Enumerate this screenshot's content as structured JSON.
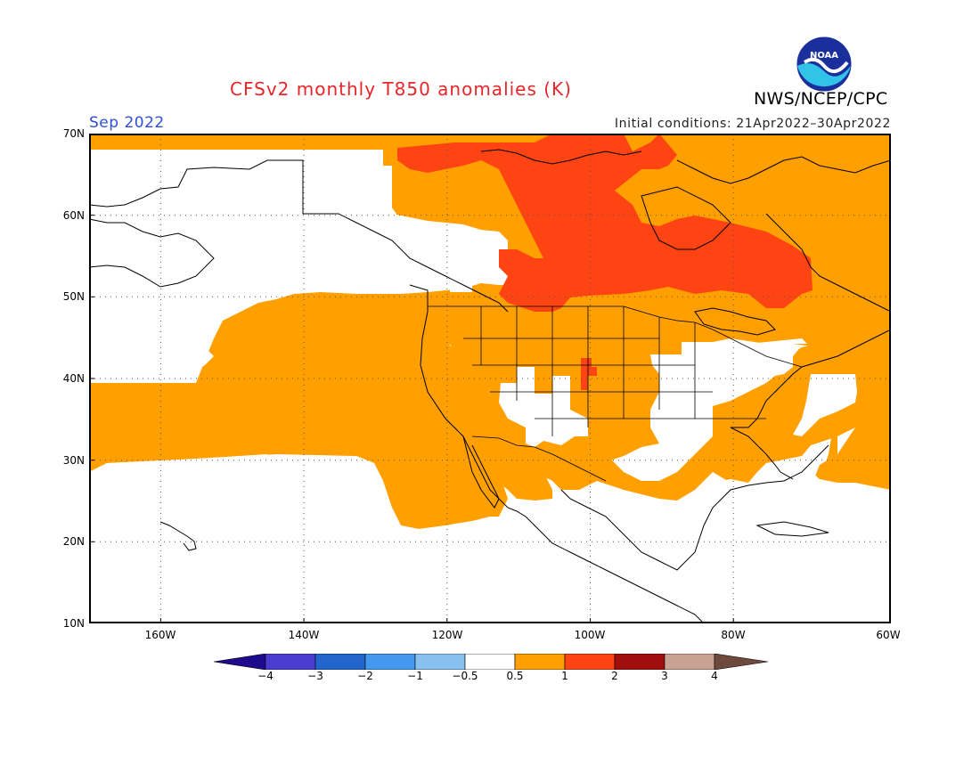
{
  "header": {
    "title": "CFSv2 monthly T850 anomalies (K)",
    "month": "Sep 2022",
    "agency": "NWS/NCEP/CPC",
    "initial_conditions": "Initial conditions: 21Apr2022–30Apr2022",
    "logo_text": "NOAA"
  },
  "map": {
    "lon_range": [
      -172,
      -60
    ],
    "lat_range": [
      10,
      70
    ],
    "lat_labels": [
      "70N",
      "60N",
      "50N",
      "40N",
      "30N",
      "20N",
      "10N"
    ],
    "lon_labels": [
      "160W",
      "140W",
      "120W",
      "100W",
      "80W",
      "60W"
    ],
    "grid": "dotted"
  },
  "legend": {
    "tick_labels": [
      "−4",
      "−3",
      "−2",
      "−1",
      "−0.5",
      "0.5",
      "1",
      "2",
      "3",
      "4"
    ],
    "colors": [
      "#1e0a8c",
      "#4b3cd0",
      "#2266cc",
      "#4499ee",
      "#88c0f0",
      "#ffffff",
      "#ff9f00",
      "#ff4414",
      "#a00e0e",
      "#c9a294",
      "#6e4a3c"
    ]
  },
  "colors": {
    "title": "#e8262a",
    "month": "#2e4fd6",
    "anomaly_0_5_to_1": "#ff9f00",
    "anomaly_1_to_2": "#ff4414"
  }
}
